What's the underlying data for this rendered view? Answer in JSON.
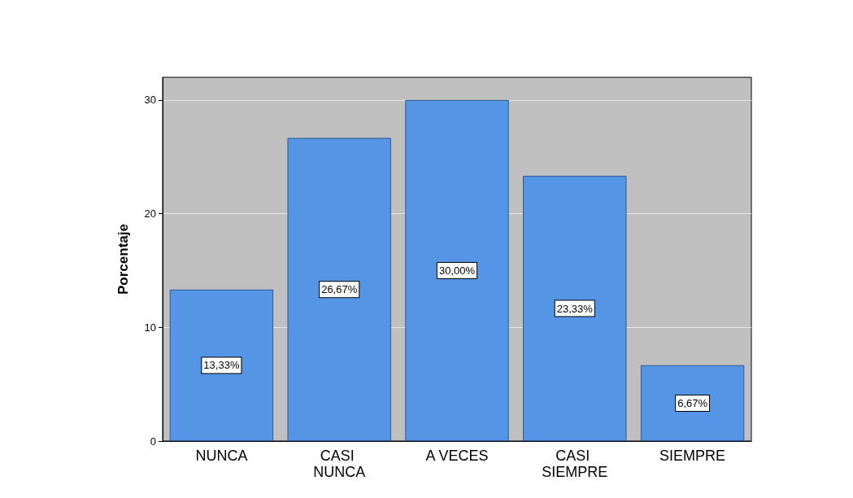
{
  "chart_data": {
    "type": "bar",
    "ylabel": "Porcentaje",
    "categories": [
      "NUNCA",
      "CASI NUNCA",
      "A VECES",
      "CASI SIEMPRE",
      "SIEMPRE"
    ],
    "values": [
      13.33,
      26.67,
      30.0,
      23.33,
      6.67
    ],
    "value_labels": [
      "13,33%",
      "26,67%",
      "30,00%",
      "23,33%",
      "6,67%"
    ],
    "color": "#5495e6",
    "ylim": [
      0,
      32
    ],
    "yticks": [
      0,
      10,
      20,
      30
    ],
    "grid": "y"
  }
}
